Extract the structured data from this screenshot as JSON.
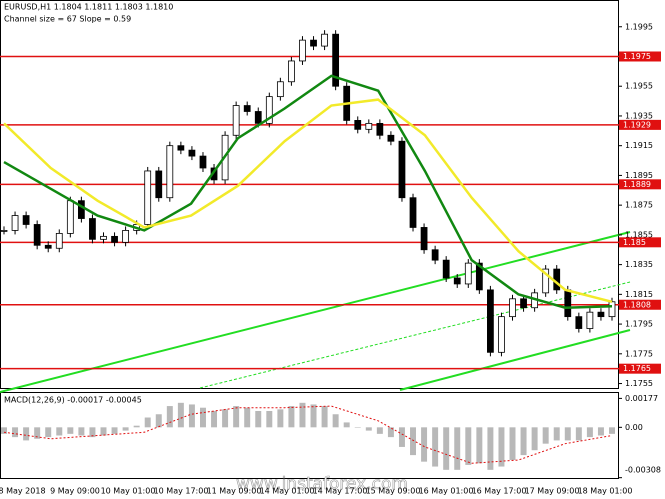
{
  "chart_data": {
    "type": "candlestick",
    "symbol_info": "EURUSD,H1  1.1804 1.1811 1.1803 1.1810",
    "channel_info": "Channel size = 67 Slope = 0.59",
    "watermark": "www.instaforex.com",
    "close": [
      1.1858,
      1.1868,
      1.1862,
      1.1848,
      1.1846,
      1.1856,
      1.1878,
      1.1866,
      1.1852,
      1.1854,
      1.185,
      1.1858,
      1.1862,
      1.1898,
      1.188,
      1.1915,
      1.1912,
      1.1908,
      1.19,
      1.1892,
      1.1922,
      1.1942,
      1.1938,
      1.193,
      1.1948,
      1.1958,
      1.1972,
      1.1986,
      1.1982,
      1.199,
      1.1955,
      1.1932,
      1.1926,
      1.193,
      1.1922,
      1.1918,
      1.188,
      1.186,
      1.1845,
      1.1838,
      1.1826,
      1.1822,
      1.1836,
      1.1818,
      1.1776,
      1.18,
      1.1812,
      1.1806,
      1.1816,
      1.1832,
      1.1818,
      1.18,
      1.1792,
      1.1803,
      1.18,
      1.181
    ],
    "series": [
      {
        "color": "#118811",
        "values": [
          1.1904,
          1.1886,
          1.1868,
          1.1858,
          1.1876,
          1.192,
          1.194,
          1.1962,
          1.1952,
          1.1898,
          1.1838,
          1.1815,
          1.1806,
          1.1807
        ]
      },
      {
        "color": "#f2ea2a",
        "values": [
          1.193,
          1.19,
          1.1878,
          1.186,
          1.1868,
          1.1888,
          1.1918,
          1.1942,
          1.1946,
          1.1922,
          1.188,
          1.1844,
          1.1818,
          1.181
        ]
      }
    ],
    "levels": [
      1.1975,
      1.1929,
      1.1889,
      1.185,
      1.1808,
      1.1765
    ],
    "level_color": "#e01010",
    "ylim": [
      1.1752,
      1.2013
    ],
    "yticks": [
      1.1995,
      1.1955,
      1.1935,
      1.1915,
      1.1895,
      1.1875,
      1.1855,
      1.1835,
      1.1815,
      1.1795,
      1.1775,
      1.1755
    ],
    "x_labels": [
      "8 May 2018",
      "9 May 09:00",
      "10 May 01:00",
      "10 May 17:00",
      "11 May 09:00",
      "14 May 01:00",
      "14 May 17:00",
      "15 May 09:00",
      "16 May 01:00",
      "16 May 17:00",
      "17 May 09:00",
      "18 May 01:00"
    ],
    "macd": {
      "label": "MACD(12,26,9) -0.00017 -0.00045",
      "histogram": [
        -0.0004,
        -0.0006,
        -0.0008,
        -0.0007,
        -0.0006,
        -0.0005,
        -0.0004,
        -0.0005,
        -0.0006,
        -0.0005,
        -0.0004,
        -0.0002,
        0.0001,
        0.0006,
        0.0008,
        0.0013,
        0.0015,
        0.0014,
        0.0012,
        0.001,
        0.0011,
        0.0013,
        0.0012,
        0.001,
        0.001,
        0.0011,
        0.0013,
        0.0015,
        0.0014,
        0.0013,
        0.0008,
        0.0003,
        0.0,
        -0.0002,
        -0.0004,
        -0.0006,
        -0.0012,
        -0.0017,
        -0.0021,
        -0.0024,
        -0.0026,
        -0.0026,
        -0.0023,
        -0.0022,
        -0.0026,
        -0.0024,
        -0.002,
        -0.0017,
        -0.0014,
        -0.001,
        -0.0008,
        -0.0008,
        -0.0008,
        -0.0006,
        -0.0005,
        -0.0004
      ],
      "signal": [
        -0.0003,
        -0.0007,
        -0.0005,
        -0.0003,
        0.0008,
        0.0012,
        0.0012,
        0.0013,
        0.0004,
        -0.0012,
        -0.0022,
        -0.002,
        -0.001,
        -0.0005
      ],
      "signal_color": "#e01010",
      "ylim": [
        -0.0031,
        0.0021
      ],
      "yticks": [
        0.00177,
        {
          "value": 0,
          "label": "0.00"
        },
        -0.00308
      ]
    }
  }
}
